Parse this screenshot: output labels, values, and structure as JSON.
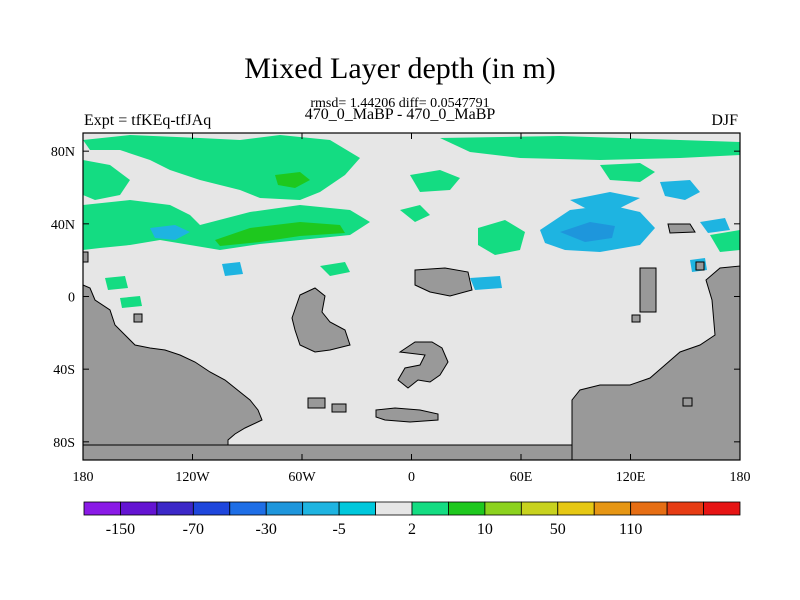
{
  "header": {
    "title": "Mixed Layer depth (in m)",
    "stats": "rmsd= 1.44206 diff= 0.0547791",
    "subtitle": "470_0_MaBP - 470_0_MaBP",
    "left_label": "Expt = tfKEq-tfJAq",
    "right_label": "DJF"
  },
  "axes": {
    "x_ticks": [
      "180",
      "120W",
      "60W",
      "0",
      "60E",
      "120E",
      "180"
    ],
    "y_ticks": [
      "80N",
      "40N",
      "0",
      "40S",
      "80S"
    ]
  },
  "colorbar": {
    "colors": [
      "#8a1ae6",
      "#6414d2",
      "#3c28c8",
      "#1e46dc",
      "#1e6ee6",
      "#1e96dc",
      "#1eb4e1",
      "#00c8dc",
      "#e6e6e6",
      "#14dc82",
      "#1ec81e",
      "#8cd21e",
      "#c8d21e",
      "#e6c814",
      "#e69614",
      "#e66e14",
      "#e63c14",
      "#e61414"
    ],
    "labels": [
      "-150",
      "-70",
      "-30",
      "-5",
      "2",
      "10",
      "50",
      "110"
    ],
    "colors_note": "first 8 negative, neutral middle, then positive"
  },
  "map": {
    "ocean_color": "#e6e6e6",
    "land_color": "#999999",
    "coast_color": "#000000"
  }
}
